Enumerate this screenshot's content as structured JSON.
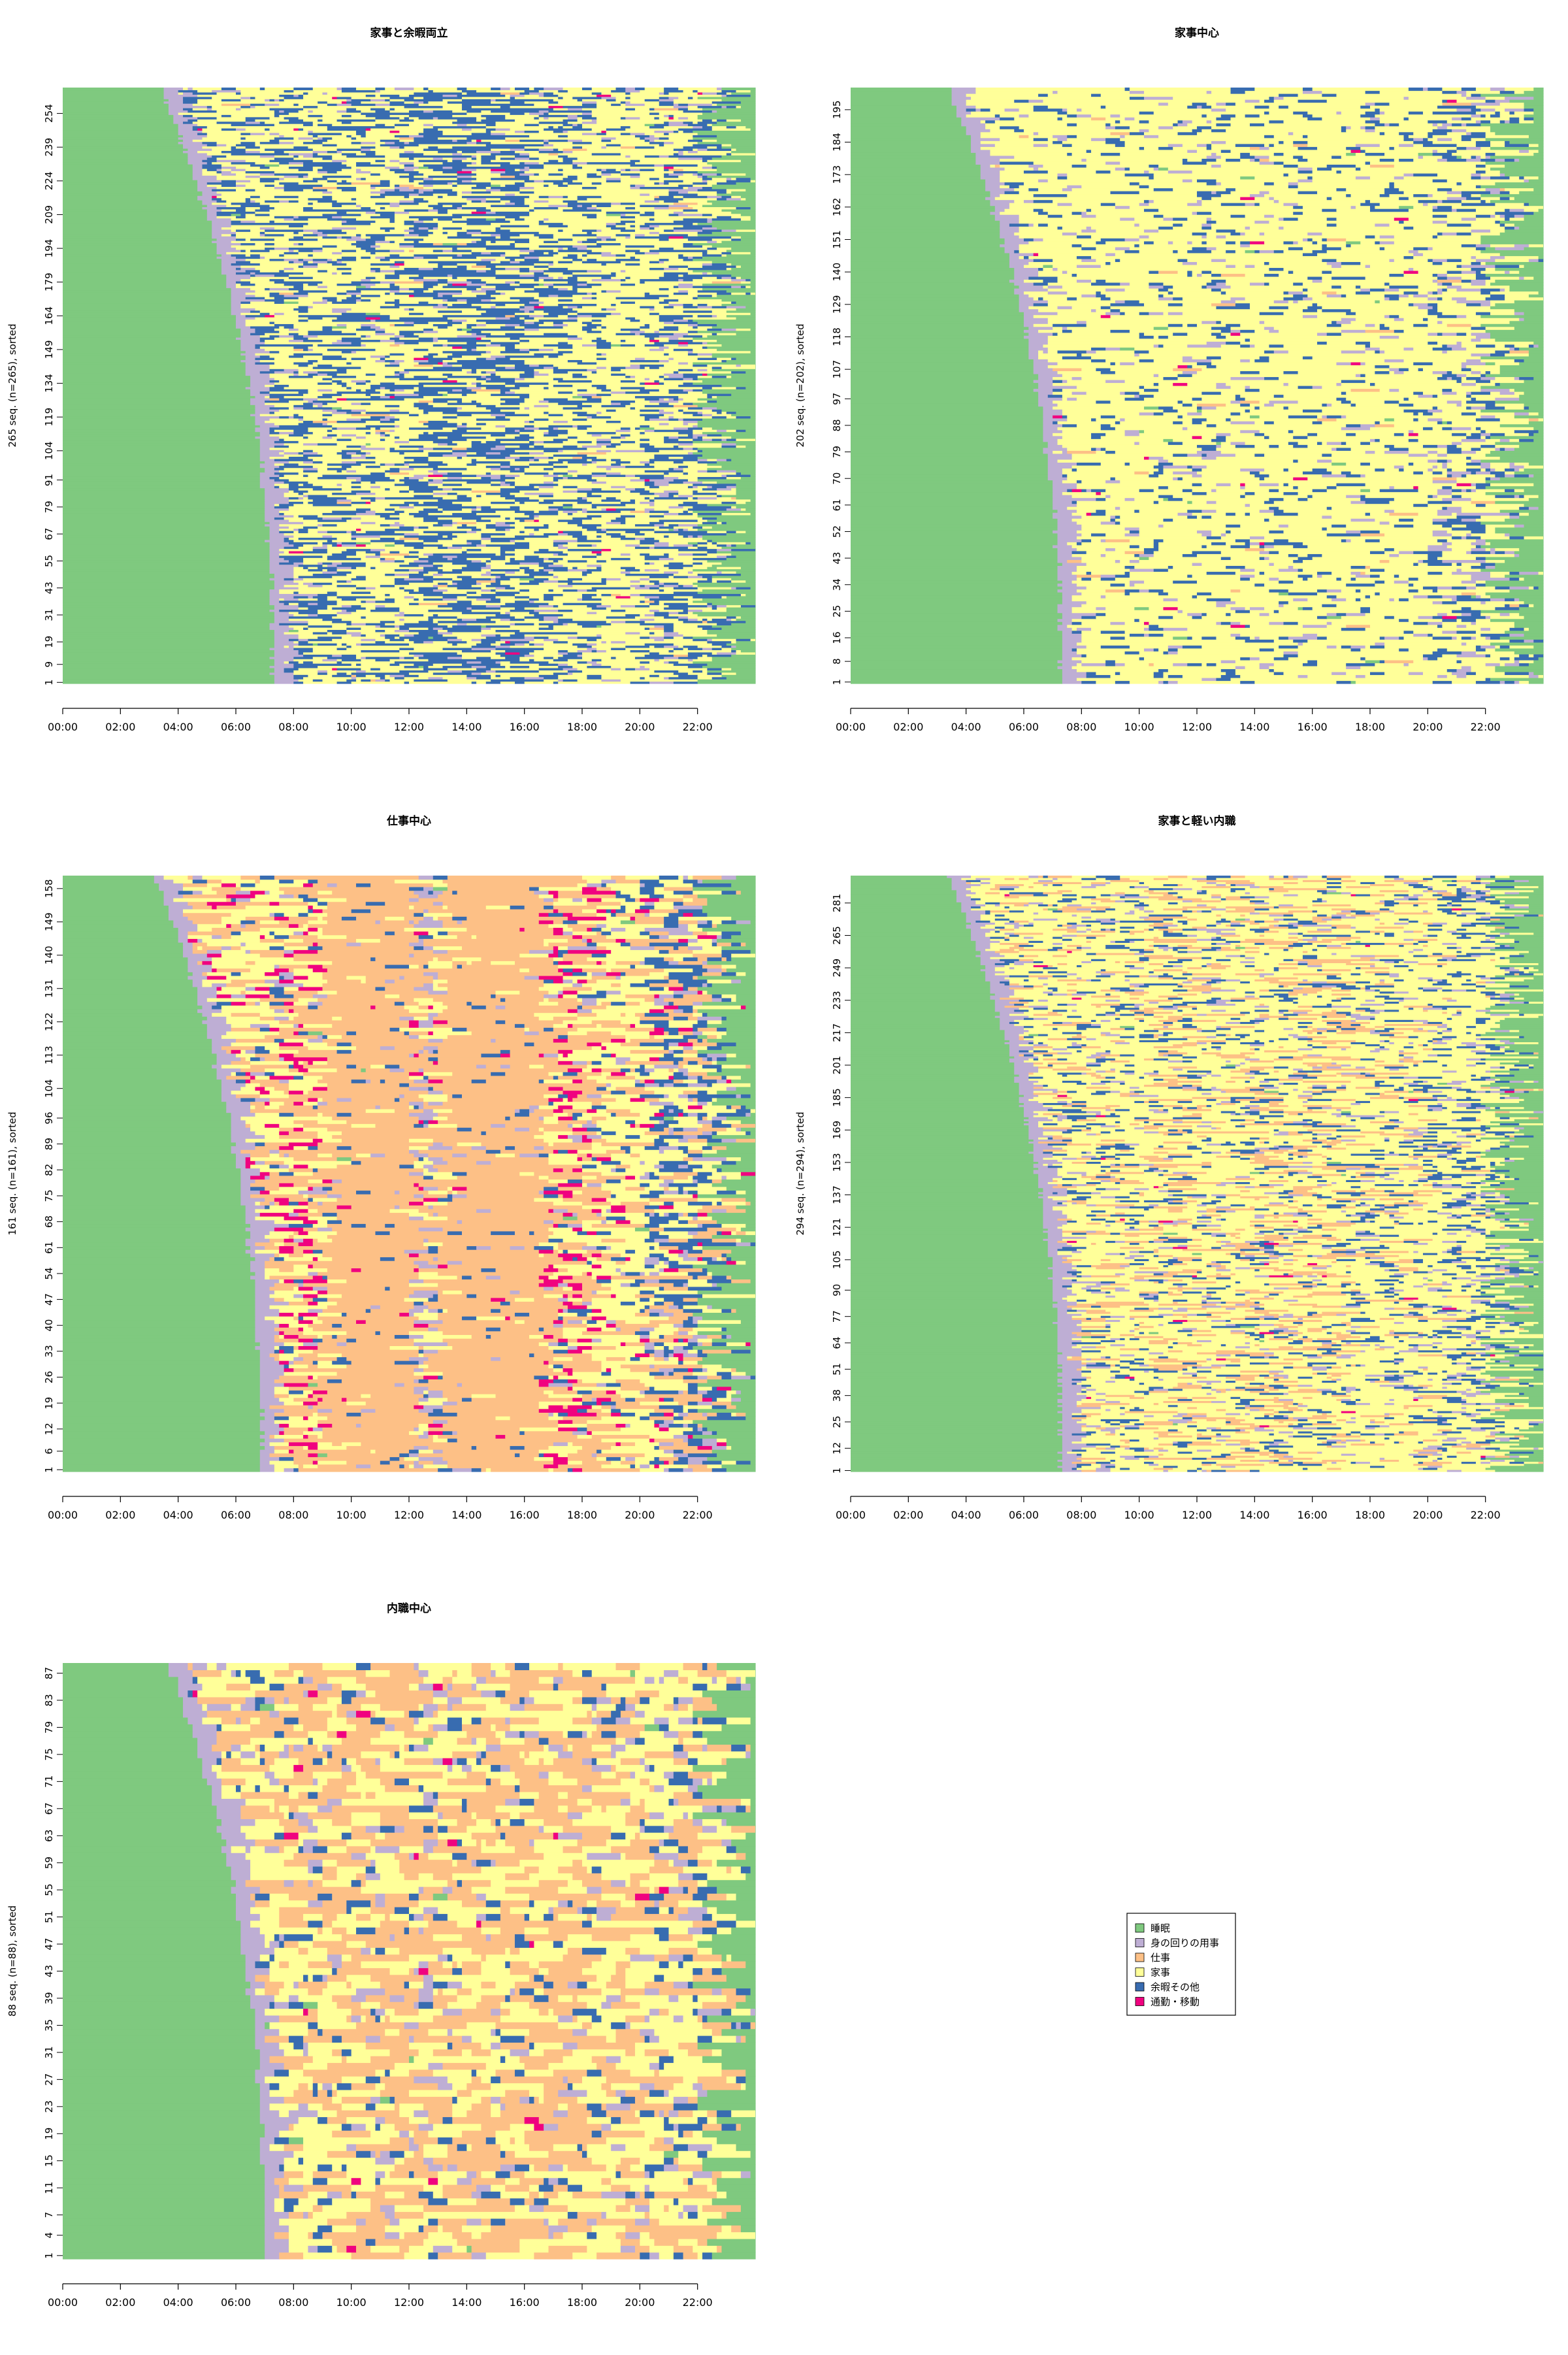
{
  "colors": {
    "sleep": "#7fc97f",
    "personal": "#beaed4",
    "work": "#fdc086",
    "housework": "#ffff99",
    "leisure": "#386cb0",
    "commute": "#f0027f"
  },
  "legend": {
    "items": [
      {
        "label": "睡眠",
        "color_key": "sleep"
      },
      {
        "label": "身の回りの用事",
        "color_key": "personal"
      },
      {
        "label": "仕事",
        "color_key": "work"
      },
      {
        "label": "家事",
        "color_key": "housework"
      },
      {
        "label": "余暇その他",
        "color_key": "leisure"
      },
      {
        "label": "通勤・移動",
        "color_key": "commute"
      }
    ]
  },
  "chart_data": [
    {
      "type": "heatmap",
      "title": "家事と余暇両立",
      "ylabel": "265 seq. (n=265), sorted",
      "n": 265,
      "profile": "leisure",
      "xticks": [
        "00:00",
        "02:00",
        "04:00",
        "06:00",
        "08:00",
        "10:00",
        "12:00",
        "14:00",
        "16:00",
        "18:00",
        "20:00",
        "22:00"
      ],
      "yticks": [
        "1",
        "9",
        "19",
        "31",
        "43",
        "55",
        "67",
        "79",
        "91",
        "104",
        "119",
        "134",
        "149",
        "164",
        "179",
        "194",
        "209",
        "224",
        "239",
        "254"
      ]
    },
    {
      "type": "heatmap",
      "title": "家事中心",
      "ylabel": "202 seq. (n=202), sorted",
      "n": 202,
      "profile": "housework",
      "xticks": [
        "00:00",
        "02:00",
        "04:00",
        "06:00",
        "08:00",
        "10:00",
        "12:00",
        "14:00",
        "16:00",
        "18:00",
        "20:00",
        "22:00"
      ],
      "yticks": [
        "1",
        "8",
        "16",
        "25",
        "34",
        "43",
        "52",
        "61",
        "70",
        "79",
        "88",
        "97",
        "107",
        "118",
        "129",
        "140",
        "151",
        "162",
        "173",
        "184",
        "195"
      ]
    },
    {
      "type": "heatmap",
      "title": "仕事中心",
      "ylabel": "161 seq. (n=161), sorted",
      "n": 161,
      "profile": "work",
      "xticks": [
        "00:00",
        "02:00",
        "04:00",
        "06:00",
        "08:00",
        "10:00",
        "12:00",
        "14:00",
        "16:00",
        "18:00",
        "20:00",
        "22:00"
      ],
      "yticks": [
        "1",
        "6",
        "12",
        "19",
        "26",
        "33",
        "40",
        "47",
        "54",
        "61",
        "68",
        "75",
        "82",
        "89",
        "96",
        "104",
        "113",
        "122",
        "131",
        "140",
        "149",
        "158"
      ]
    },
    {
      "type": "heatmap",
      "title": "家事と軽い内職",
      "ylabel": "294 seq. (n=294), sorted",
      "n": 294,
      "profile": "light",
      "xticks": [
        "00:00",
        "02:00",
        "04:00",
        "06:00",
        "08:00",
        "10:00",
        "12:00",
        "14:00",
        "16:00",
        "18:00",
        "20:00",
        "22:00"
      ],
      "yticks": [
        "1",
        "12",
        "25",
        "38",
        "51",
        "64",
        "77",
        "90",
        "105",
        "121",
        "137",
        "153",
        "169",
        "185",
        "201",
        "217",
        "233",
        "249",
        "265",
        "281"
      ]
    },
    {
      "type": "heatmap",
      "title": "内職中心",
      "ylabel": "88 seq. (n=88), sorted",
      "n": 88,
      "profile": "home",
      "xticks": [
        "00:00",
        "02:00",
        "04:00",
        "06:00",
        "08:00",
        "10:00",
        "12:00",
        "14:00",
        "16:00",
        "18:00",
        "20:00",
        "22:00"
      ],
      "yticks": [
        "1",
        "4",
        "7",
        "11",
        "15",
        "19",
        "23",
        "27",
        "31",
        "35",
        "39",
        "43",
        "47",
        "51",
        "55",
        "59",
        "63",
        "67",
        "71",
        "75",
        "79",
        "83",
        "87"
      ]
    }
  ]
}
